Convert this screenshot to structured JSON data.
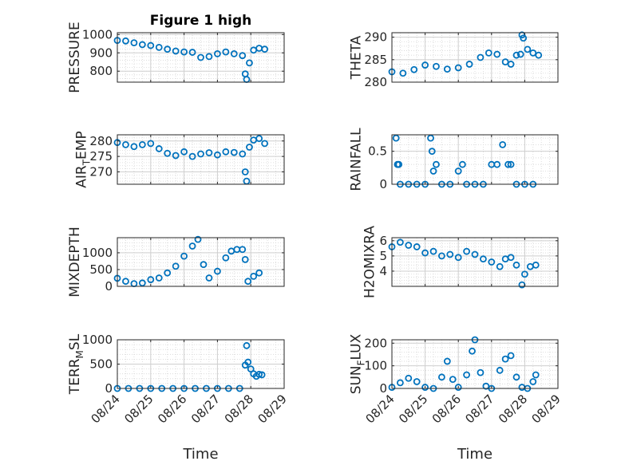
{
  "figure_title": "Figure 1 high",
  "chart_data": [
    {
      "type": "scatter",
      "title": "Figure 1 high",
      "ylabel": "PRESSURE",
      "xlabel": "",
      "ylabel_sub": null,
      "ylim": [
        740,
        1010
      ],
      "yticks": [
        800,
        900,
        1000
      ],
      "xlim": [
        "08/24",
        "08/29"
      ],
      "grid": true,
      "marker": "o",
      "color": "#0072bd",
      "points": [
        [
          "08/24 00:00",
          968
        ],
        [
          "08/24 06:00",
          965
        ],
        [
          "08/24 12:00",
          955
        ],
        [
          "08/24 18:00",
          945
        ],
        [
          "08/25 00:00",
          940
        ],
        [
          "08/25 06:00",
          930
        ],
        [
          "08/25 12:00",
          920
        ],
        [
          "08/25 18:00",
          910
        ],
        [
          "08/26 00:00",
          905
        ],
        [
          "08/26 06:00",
          903
        ],
        [
          "08/26 12:00",
          875
        ],
        [
          "08/26 18:00",
          880
        ],
        [
          "08/27 00:00",
          895
        ],
        [
          "08/27 06:00",
          905
        ],
        [
          "08/27 12:00",
          895
        ],
        [
          "08/27 18:00",
          885
        ],
        [
          "08/27 20:00",
          785
        ],
        [
          "08/27 21:00",
          755
        ],
        [
          "08/27 23:00",
          845
        ],
        [
          "08/28 02:00",
          915
        ],
        [
          "08/28 06:00",
          925
        ],
        [
          "08/28 10:00",
          920
        ]
      ]
    },
    {
      "type": "scatter",
      "title": "",
      "ylabel": "THETA",
      "xlabel": "",
      "ylabel_sub": null,
      "ylim": [
        280,
        291
      ],
      "yticks": [
        280,
        285,
        290
      ],
      "xlim": [
        "08/24",
        "08/29"
      ],
      "grid": true,
      "marker": "o",
      "color": "#0072bd",
      "points": [
        [
          "08/24 00:00",
          282.3
        ],
        [
          "08/24 08:00",
          282
        ],
        [
          "08/24 16:00",
          282.8
        ],
        [
          "08/25 00:00",
          283.8
        ],
        [
          "08/25 08:00",
          283.5
        ],
        [
          "08/25 16:00",
          282.9
        ],
        [
          "08/26 00:00",
          283.2
        ],
        [
          "08/26 08:00",
          284
        ],
        [
          "08/26 16:00",
          285.5
        ],
        [
          "08/26 22:00",
          286.5
        ],
        [
          "08/27 04:00",
          286.2
        ],
        [
          "08/27 10:00",
          284.5
        ],
        [
          "08/27 14:00",
          284
        ],
        [
          "08/27 18:00",
          286
        ],
        [
          "08/27 21:00",
          286.2
        ],
        [
          "08/27 22:00",
          290.5
        ],
        [
          "08/27 23:00",
          289.8
        ],
        [
          "08/28 02:00",
          287.3
        ],
        [
          "08/28 06:00",
          286.5
        ],
        [
          "08/28 10:00",
          286
        ]
      ]
    },
    {
      "type": "scatter",
      "title": "",
      "ylabel": "AIR",
      "ylabel_sub": "T",
      "ylabel_tail": "EMP",
      "xlabel": "",
      "ylim": [
        266,
        282
      ],
      "yticks": [
        270,
        275,
        280
      ],
      "xlim": [
        "08/24",
        "08/29"
      ],
      "grid": true,
      "marker": "o",
      "color": "#0072bd",
      "points": [
        [
          "08/24 00:00",
          279.5
        ],
        [
          "08/24 06:00",
          278.8
        ],
        [
          "08/24 12:00",
          278.2
        ],
        [
          "08/24 18:00",
          278.8
        ],
        [
          "08/25 00:00",
          279.2
        ],
        [
          "08/25 06:00",
          277.5
        ],
        [
          "08/25 12:00",
          276
        ],
        [
          "08/25 18:00",
          275.3
        ],
        [
          "08/26 00:00",
          276.5
        ],
        [
          "08/26 06:00",
          275
        ],
        [
          "08/26 12:00",
          275.8
        ],
        [
          "08/26 18:00",
          276.2
        ],
        [
          "08/27 00:00",
          275.5
        ],
        [
          "08/27 06:00",
          276.5
        ],
        [
          "08/27 12:00",
          276.3
        ],
        [
          "08/27 18:00",
          275.8
        ],
        [
          "08/27 20:00",
          270
        ],
        [
          "08/27 21:00",
          267
        ],
        [
          "08/27 23:00",
          278
        ],
        [
          "08/28 02:00",
          280.3
        ],
        [
          "08/28 06:00",
          280.8
        ],
        [
          "08/28 10:00",
          279.2
        ]
      ]
    },
    {
      "type": "scatter",
      "title": "",
      "ylabel": "RAINFALL",
      "xlabel": "",
      "ylabel_sub": null,
      "ylim": [
        0,
        0.75
      ],
      "yticks": [
        0,
        0.5
      ],
      "xlim": [
        "08/24",
        "08/29"
      ],
      "grid": true,
      "marker": "o",
      "color": "#0072bd",
      "points": [
        [
          "08/24 03:00",
          0.7
        ],
        [
          "08/24 04:00",
          0.3
        ],
        [
          "08/24 05:00",
          0.3
        ],
        [
          "08/24 06:00",
          0
        ],
        [
          "08/24 12:00",
          0
        ],
        [
          "08/24 18:00",
          0
        ],
        [
          "08/25 00:00",
          0
        ],
        [
          "08/25 04:00",
          0.7
        ],
        [
          "08/25 05:00",
          0.5
        ],
        [
          "08/25 06:00",
          0.2
        ],
        [
          "08/25 08:00",
          0.3
        ],
        [
          "08/25 12:00",
          0
        ],
        [
          "08/25 18:00",
          0
        ],
        [
          "08/26 00:00",
          0.2
        ],
        [
          "08/26 03:00",
          0.3
        ],
        [
          "08/26 06:00",
          0
        ],
        [
          "08/26 12:00",
          0
        ],
        [
          "08/26 18:00",
          0
        ],
        [
          "08/27 00:00",
          0.3
        ],
        [
          "08/27 04:00",
          0.3
        ],
        [
          "08/27 08:00",
          0.6
        ],
        [
          "08/27 12:00",
          0.3
        ],
        [
          "08/27 14:00",
          0.3
        ],
        [
          "08/27 18:00",
          0
        ],
        [
          "08/28 00:00",
          0
        ],
        [
          "08/28 06:00",
          0
        ]
      ]
    },
    {
      "type": "scatter",
      "title": "",
      "ylabel": "MIXDEPTH",
      "xlabel": "",
      "ylabel_sub": null,
      "ylim": [
        0,
        1450
      ],
      "yticks": [
        0,
        500,
        1000
      ],
      "xlim": [
        "08/24",
        "08/29"
      ],
      "grid": true,
      "marker": "o",
      "color": "#0072bd",
      "points": [
        [
          "08/24 00:00",
          240
        ],
        [
          "08/24 06:00",
          150
        ],
        [
          "08/24 12:00",
          80
        ],
        [
          "08/24 18:00",
          100
        ],
        [
          "08/25 00:00",
          200
        ],
        [
          "08/25 06:00",
          250
        ],
        [
          "08/25 12:00",
          400
        ],
        [
          "08/25 18:00",
          600
        ],
        [
          "08/26 00:00",
          900
        ],
        [
          "08/26 06:00",
          1200
        ],
        [
          "08/26 10:00",
          1400
        ],
        [
          "08/26 14:00",
          650
        ],
        [
          "08/26 18:00",
          250
        ],
        [
          "08/27 00:00",
          450
        ],
        [
          "08/27 06:00",
          850
        ],
        [
          "08/27 10:00",
          1050
        ],
        [
          "08/27 14:00",
          1100
        ],
        [
          "08/27 18:00",
          1100
        ],
        [
          "08/27 20:00",
          800
        ],
        [
          "08/27 22:00",
          150
        ],
        [
          "08/28 02:00",
          300
        ],
        [
          "08/28 06:00",
          400
        ]
      ]
    },
    {
      "type": "scatter",
      "title": "",
      "ylabel": "H2OMIXRA",
      "xlabel": "",
      "ylabel_sub": null,
      "ylim": [
        3,
        6.2
      ],
      "yticks": [
        4,
        5,
        6
      ],
      "xlim": [
        "08/24",
        "08/29"
      ],
      "grid": true,
      "marker": "o",
      "color": "#0072bd",
      "points": [
        [
          "08/24 00:00",
          5.6
        ],
        [
          "08/24 06:00",
          5.9
        ],
        [
          "08/24 12:00",
          5.7
        ],
        [
          "08/24 18:00",
          5.6
        ],
        [
          "08/25 00:00",
          5.2
        ],
        [
          "08/25 06:00",
          5.3
        ],
        [
          "08/25 12:00",
          5
        ],
        [
          "08/25 18:00",
          5.1
        ],
        [
          "08/26 00:00",
          4.9
        ],
        [
          "08/26 06:00",
          5.3
        ],
        [
          "08/26 12:00",
          5.1
        ],
        [
          "08/26 18:00",
          4.8
        ],
        [
          "08/27 00:00",
          4.6
        ],
        [
          "08/27 06:00",
          4.3
        ],
        [
          "08/27 10:00",
          4.8
        ],
        [
          "08/27 14:00",
          4.9
        ],
        [
          "08/27 18:00",
          4.4
        ],
        [
          "08/27 22:00",
          3.1
        ],
        [
          "08/28 00:00",
          3.8
        ],
        [
          "08/28 04:00",
          4.3
        ],
        [
          "08/28 08:00",
          4.4
        ]
      ]
    },
    {
      "type": "scatter",
      "title": "",
      "ylabel": "TERR",
      "ylabel_sub": "M",
      "ylabel_tail": "SL",
      "xlabel": "Time",
      "ylim": [
        0,
        1000
      ],
      "yticks": [
        0,
        500,
        1000
      ],
      "xlim": [
        "08/24",
        "08/29"
      ],
      "xticks": [
        "08/24",
        "08/25",
        "08/26",
        "08/27",
        "08/28",
        "08/29"
      ],
      "grid": true,
      "marker": "o",
      "color": "#0072bd",
      "points": [
        [
          "08/24 00:00",
          0
        ],
        [
          "08/24 08:00",
          0
        ],
        [
          "08/24 16:00",
          0
        ],
        [
          "08/25 00:00",
          0
        ],
        [
          "08/25 08:00",
          0
        ],
        [
          "08/25 16:00",
          0
        ],
        [
          "08/26 00:00",
          0
        ],
        [
          "08/26 08:00",
          0
        ],
        [
          "08/26 16:00",
          0
        ],
        [
          "08/27 00:00",
          0
        ],
        [
          "08/27 08:00",
          0
        ],
        [
          "08/27 16:00",
          0
        ],
        [
          "08/27 20:00",
          480
        ],
        [
          "08/27 21:00",
          880
        ],
        [
          "08/27 22:00",
          540
        ],
        [
          "08/28 00:00",
          400
        ],
        [
          "08/28 02:00",
          300
        ],
        [
          "08/28 04:00",
          250
        ],
        [
          "08/28 06:00",
          290
        ],
        [
          "08/28 08:00",
          280
        ]
      ]
    },
    {
      "type": "scatter",
      "title": "",
      "ylabel": "SUN",
      "ylabel_sub": "F",
      "ylabel_tail": "LUX",
      "xlabel": "Time",
      "ylim": [
        0,
        215
      ],
      "yticks": [
        0,
        100,
        200
      ],
      "xlim": [
        "08/24",
        "08/29"
      ],
      "xticks": [
        "08/24",
        "08/25",
        "08/26",
        "08/27",
        "08/28",
        "08/29"
      ],
      "grid": true,
      "marker": "o",
      "color": "#0072bd",
      "points": [
        [
          "08/24 00:00",
          5
        ],
        [
          "08/24 06:00",
          25
        ],
        [
          "08/24 12:00",
          45
        ],
        [
          "08/24 18:00",
          30
        ],
        [
          "08/25 00:00",
          5
        ],
        [
          "08/25 06:00",
          0
        ],
        [
          "08/25 12:00",
          50
        ],
        [
          "08/25 16:00",
          120
        ],
        [
          "08/25 20:00",
          40
        ],
        [
          "08/26 00:00",
          5
        ],
        [
          "08/26 06:00",
          60
        ],
        [
          "08/26 10:00",
          165
        ],
        [
          "08/26 12:00",
          215
        ],
        [
          "08/26 16:00",
          70
        ],
        [
          "08/26 20:00",
          10
        ],
        [
          "08/27 00:00",
          0
        ],
        [
          "08/27 06:00",
          80
        ],
        [
          "08/27 10:00",
          130
        ],
        [
          "08/27 14:00",
          145
        ],
        [
          "08/27 18:00",
          50
        ],
        [
          "08/27 22:00",
          5
        ],
        [
          "08/28 02:00",
          0
        ],
        [
          "08/28 06:00",
          30
        ],
        [
          "08/28 08:00",
          60
        ]
      ]
    }
  ]
}
